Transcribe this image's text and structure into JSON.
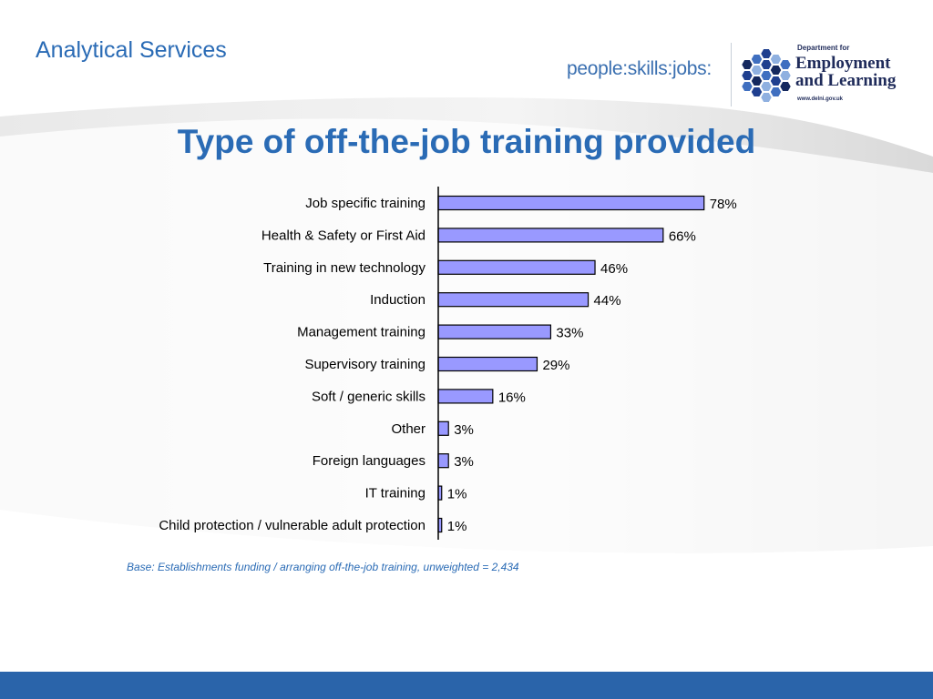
{
  "header": {
    "title": "Analytical Services"
  },
  "logos": {
    "psj_text": "people:skills:jobs:",
    "del_department": "Department for",
    "del_name_line1": "Employment",
    "del_name_line2": "and Learning",
    "del_website": "www.delni.gov.uk",
    "del_hex_colors": [
      "#1f3f8f",
      "#3f6fc0",
      "#8fb0e0",
      "#14285e"
    ]
  },
  "colors": {
    "title_blue": "#2a6bb5",
    "bar_fill": "#9999ff",
    "bar_stroke": "#000000",
    "footer_blue": "#2a64aa"
  },
  "chart_data": {
    "type": "bar",
    "orientation": "horizontal",
    "title": "Type of off-the-job training provided",
    "categories": [
      "Job specific training",
      "Health & Safety or First Aid",
      "Training in new  technology",
      "Induction",
      "Management training",
      "Supervisory training",
      "Soft / generic skills",
      "Other",
      "Foreign languages",
      "IT training",
      "Child protection / vulnerable adult protection"
    ],
    "values": [
      78,
      66,
      46,
      44,
      33,
      29,
      16,
      3,
      3,
      1,
      1
    ],
    "value_labels": [
      "78%",
      "66%",
      "46%",
      "44%",
      "33%",
      "29%",
      "16%",
      "3%",
      "3%",
      "1%",
      "1%"
    ],
    "unit": "%",
    "xlim": [
      0,
      100
    ],
    "grid": false,
    "legend": "none"
  },
  "footnote": {
    "base_text": "Base: Establishments funding / arranging off-the-job training, unweighted = 2,434"
  }
}
